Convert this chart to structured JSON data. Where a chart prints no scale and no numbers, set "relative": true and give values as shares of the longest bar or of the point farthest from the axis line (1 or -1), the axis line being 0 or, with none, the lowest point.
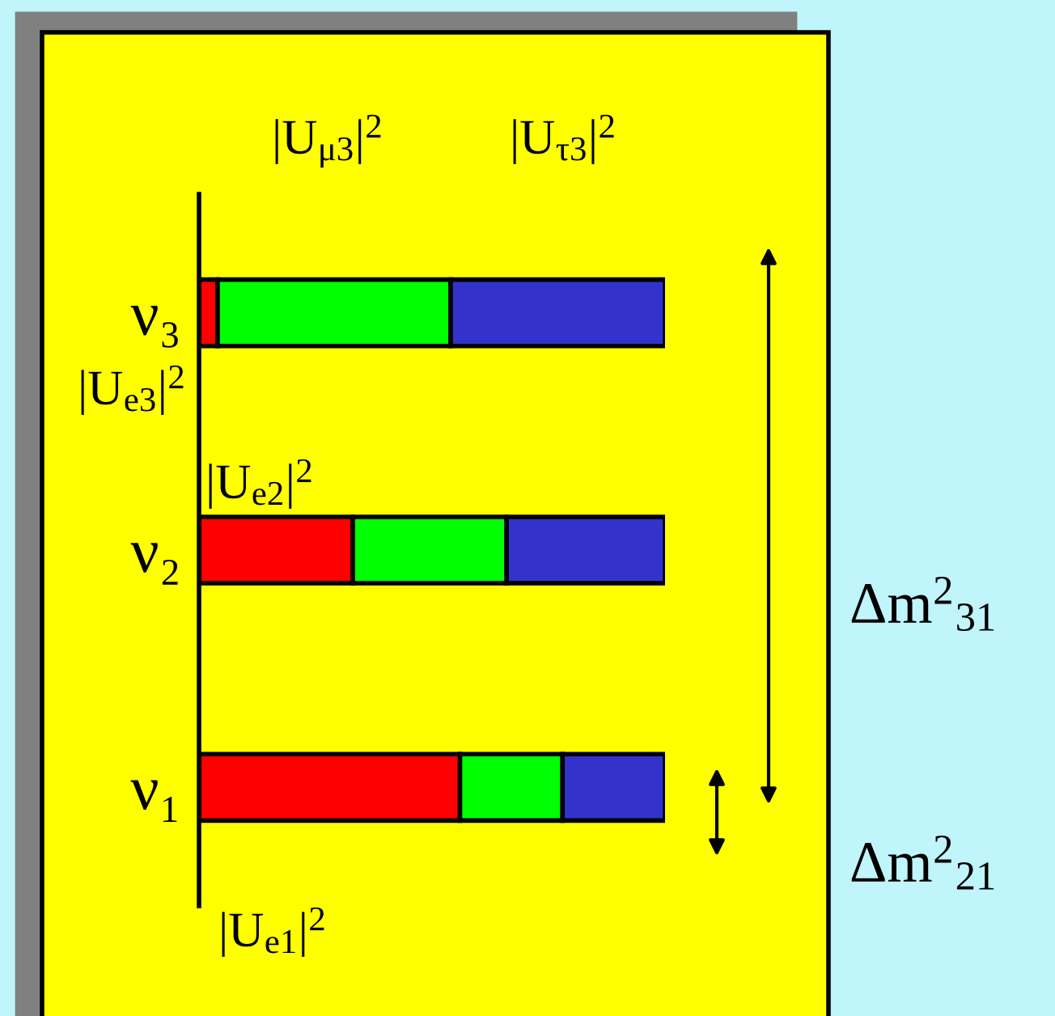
{
  "chart_data": {
    "type": "bar",
    "orientation": "horizontal",
    "stacked": true,
    "relative": true,
    "categories": [
      "ν₃",
      "ν₂",
      "ν₁"
    ],
    "series": [
      {
        "color": "#ff0000",
        "values": [
          0.04,
          0.33,
          0.56
        ]
      },
      {
        "color": "#00ff00",
        "values": [
          0.5,
          0.33,
          0.22
        ]
      },
      {
        "color": "#3333cc",
        "values": [
          0.46,
          0.34,
          0.22
        ]
      }
    ],
    "annotations": [
      "|U$_{μ3}$|$^{2}$",
      "|U$_{τ3}$|$^{2}$",
      "|U$_{e3}$|$^{2}$",
      "|U$_{e2}$|$^{2}$",
      "|U$_{e1}$|$^{2}$",
      "Δm$^{2}$$_{31}$",
      "Δm$^{2}$$_{21}$"
    ],
    "grid": false,
    "legend": false
  }
}
